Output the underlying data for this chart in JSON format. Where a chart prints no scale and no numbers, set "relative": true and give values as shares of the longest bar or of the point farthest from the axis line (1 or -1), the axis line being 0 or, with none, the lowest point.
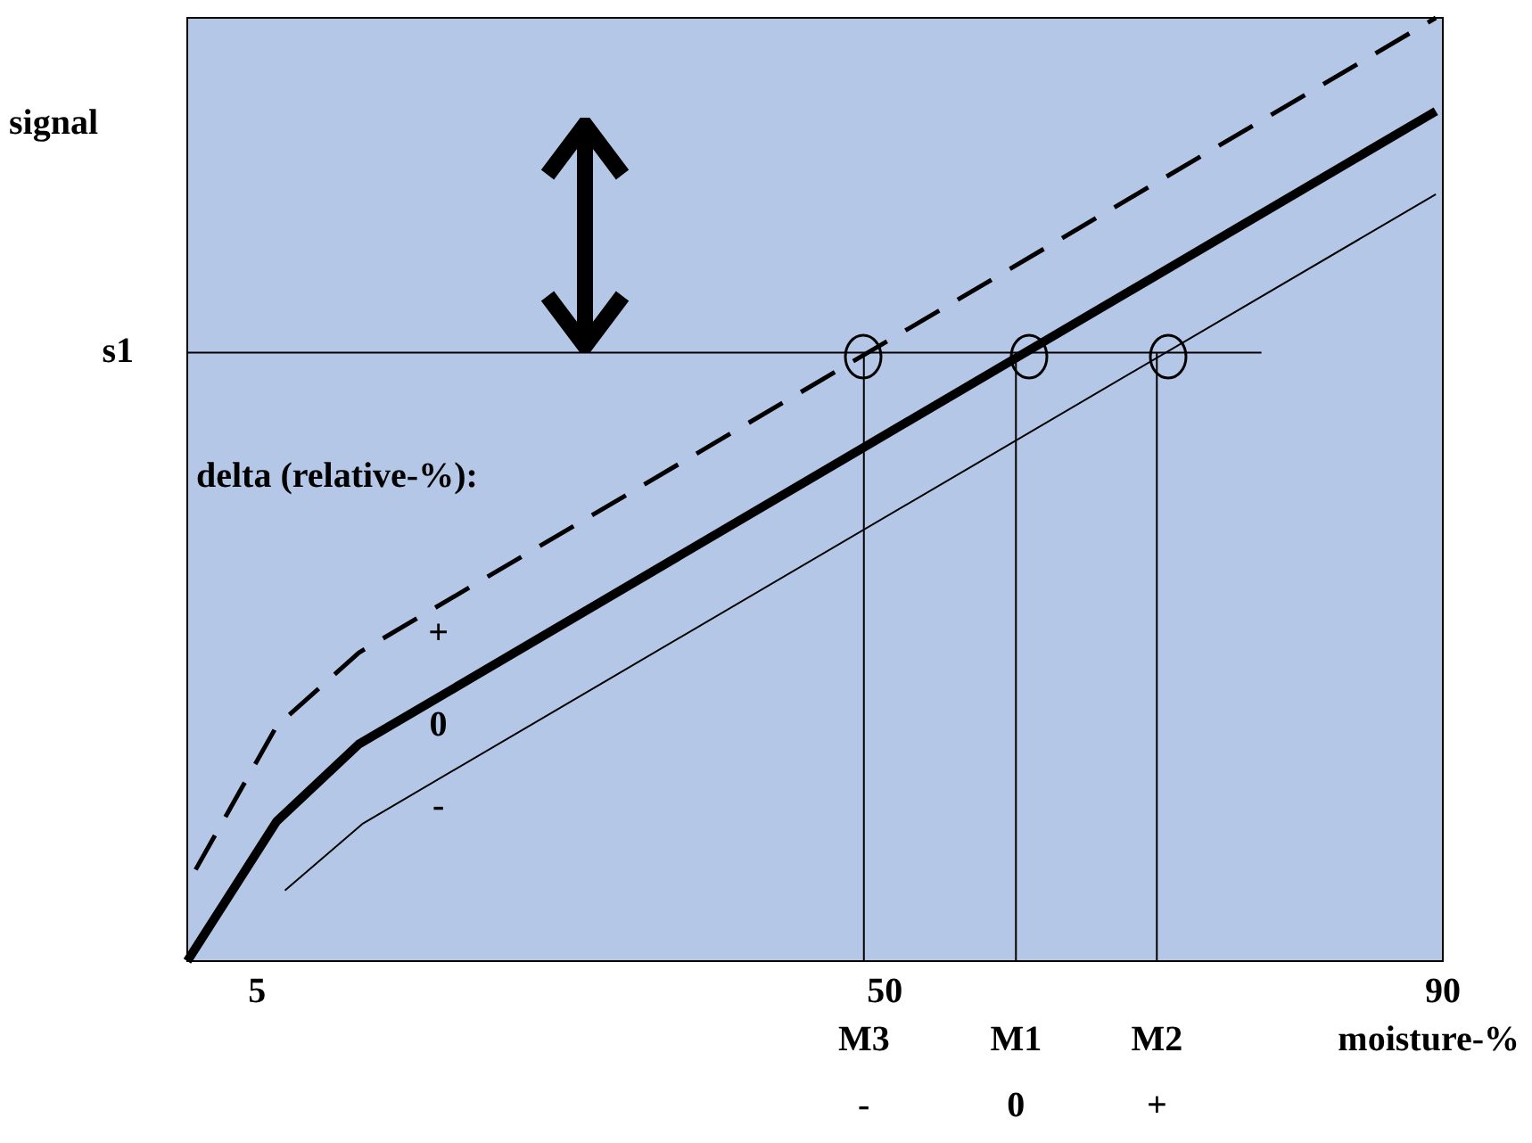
{
  "chart_data": {
    "type": "line",
    "relative": true,
    "xlabel": "moisture-%",
    "ylabel": "signal",
    "xlim": [
      0,
      90
    ],
    "xticks": [
      5,
      50,
      90
    ],
    "grid": false,
    "legend": false,
    "marker": "none",
    "tick_labels": "x",
    "series": [
      {
        "name": "+",
        "color": "#000000",
        "line_style": "dashed",
        "x": [
          0.6,
          6.4,
          12.3,
          89.5
        ],
        "values": [
          0.097,
          0.249,
          0.327,
          1.0
        ]
      },
      {
        "name": "0",
        "color": "#000000",
        "x": [
          0,
          6.4,
          12.3,
          89.5
        ],
        "values": [
          0,
          0.148,
          0.23,
          0.901
        ]
      },
      {
        "name": "-",
        "color": "#000000",
        "x": [
          7.0,
          12.6,
          89.5
        ],
        "values": [
          0.075,
          0.146,
          0.813
        ]
      }
    ],
    "ref_lines": [
      {
        "axis": "y",
        "value": 0.645,
        "label": "s1"
      },
      {
        "axis": "x",
        "value": 48.5,
        "label": "M3"
      },
      {
        "axis": "x",
        "value": 59.4,
        "label": "M1"
      },
      {
        "axis": "x",
        "value": 69.5,
        "label": "M2"
      }
    ],
    "annotations": [
      "delta (relative-%):",
      "-",
      "0",
      "+"
    ]
  }
}
